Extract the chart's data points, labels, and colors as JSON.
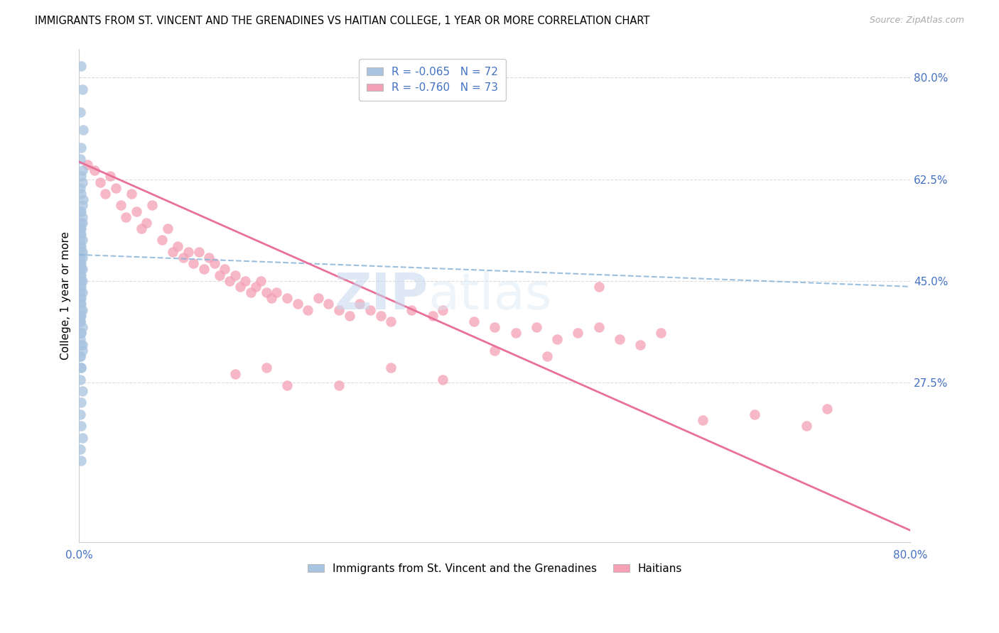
{
  "title": "IMMIGRANTS FROM ST. VINCENT AND THE GRENADINES VS HAITIAN COLLEGE, 1 YEAR OR MORE CORRELATION CHART",
  "source": "Source: ZipAtlas.com",
  "ylabel": "College, 1 year or more",
  "x_ticks": [
    0.0,
    0.1,
    0.2,
    0.3,
    0.4,
    0.5,
    0.6,
    0.7,
    0.8
  ],
  "x_tick_labels": [
    "0.0%",
    "",
    "",
    "",
    "",
    "",
    "",
    "",
    "80.0%"
  ],
  "y_tick_labels_right": [
    "80.0%",
    "62.5%",
    "45.0%",
    "27.5%"
  ],
  "y_ticks_right": [
    0.8,
    0.625,
    0.45,
    0.275
  ],
  "xlim": [
    0.0,
    0.8
  ],
  "ylim": [
    0.0,
    0.85
  ],
  "legend_label1": "Immigrants from St. Vincent and the Grenadines",
  "legend_label2": "Haitians",
  "color_blue": "#a8c4e0",
  "color_pink": "#f4a0b5",
  "color_blue_line": "#8ab4d8",
  "color_pink_line": "#e8709a",
  "color_text_blue": "#4472c4",
  "grid_color": "#dddddd",
  "background_color": "#ffffff",
  "blue_dots_x": [
    0.002,
    0.003,
    0.001,
    0.004,
    0.002,
    0.001,
    0.003,
    0.002,
    0.003,
    0.001,
    0.002,
    0.004,
    0.003,
    0.002,
    0.001,
    0.003,
    0.002,
    0.003,
    0.001,
    0.002,
    0.001,
    0.002,
    0.003,
    0.001,
    0.002,
    0.001,
    0.003,
    0.002,
    0.001,
    0.003,
    0.002,
    0.001,
    0.002,
    0.003,
    0.001,
    0.002,
    0.001,
    0.003,
    0.002,
    0.001,
    0.002,
    0.001,
    0.003,
    0.002,
    0.001,
    0.002,
    0.001,
    0.003,
    0.002,
    0.001,
    0.002,
    0.001,
    0.003,
    0.002,
    0.001,
    0.002,
    0.003,
    0.001,
    0.002,
    0.001,
    0.003,
    0.002,
    0.001,
    0.002,
    0.003,
    0.001,
    0.002,
    0.001,
    0.002,
    0.003,
    0.001,
    0.002
  ],
  "blue_dots_y": [
    0.82,
    0.78,
    0.74,
    0.71,
    0.68,
    0.66,
    0.64,
    0.63,
    0.62,
    0.61,
    0.6,
    0.59,
    0.58,
    0.57,
    0.57,
    0.56,
    0.55,
    0.55,
    0.54,
    0.54,
    0.53,
    0.53,
    0.52,
    0.52,
    0.51,
    0.51,
    0.5,
    0.5,
    0.49,
    0.49,
    0.48,
    0.48,
    0.47,
    0.47,
    0.47,
    0.46,
    0.46,
    0.45,
    0.45,
    0.44,
    0.44,
    0.43,
    0.43,
    0.42,
    0.42,
    0.41,
    0.41,
    0.4,
    0.4,
    0.39,
    0.39,
    0.38,
    0.37,
    0.36,
    0.35,
    0.34,
    0.33,
    0.32,
    0.3,
    0.28,
    0.26,
    0.24,
    0.22,
    0.2,
    0.18,
    0.16,
    0.14,
    0.38,
    0.36,
    0.34,
    0.32,
    0.3
  ],
  "pink_dots_x": [
    0.008,
    0.015,
    0.02,
    0.025,
    0.03,
    0.035,
    0.04,
    0.045,
    0.05,
    0.055,
    0.06,
    0.065,
    0.07,
    0.08,
    0.085,
    0.09,
    0.095,
    0.1,
    0.105,
    0.11,
    0.115,
    0.12,
    0.125,
    0.13,
    0.135,
    0.14,
    0.145,
    0.15,
    0.155,
    0.16,
    0.165,
    0.17,
    0.175,
    0.18,
    0.185,
    0.19,
    0.2,
    0.21,
    0.22,
    0.23,
    0.24,
    0.25,
    0.26,
    0.27,
    0.28,
    0.29,
    0.3,
    0.32,
    0.34,
    0.35,
    0.38,
    0.4,
    0.42,
    0.44,
    0.46,
    0.48,
    0.5,
    0.52,
    0.54,
    0.56,
    0.6,
    0.65,
    0.7,
    0.72,
    0.3,
    0.35,
    0.2,
    0.15,
    0.25,
    0.18,
    0.4,
    0.45,
    0.5
  ],
  "pink_dots_y": [
    0.65,
    0.64,
    0.62,
    0.6,
    0.63,
    0.61,
    0.58,
    0.56,
    0.6,
    0.57,
    0.54,
    0.55,
    0.58,
    0.52,
    0.54,
    0.5,
    0.51,
    0.49,
    0.5,
    0.48,
    0.5,
    0.47,
    0.49,
    0.48,
    0.46,
    0.47,
    0.45,
    0.46,
    0.44,
    0.45,
    0.43,
    0.44,
    0.45,
    0.43,
    0.42,
    0.43,
    0.42,
    0.41,
    0.4,
    0.42,
    0.41,
    0.4,
    0.39,
    0.41,
    0.4,
    0.39,
    0.38,
    0.4,
    0.39,
    0.4,
    0.38,
    0.37,
    0.36,
    0.37,
    0.35,
    0.36,
    0.37,
    0.35,
    0.34,
    0.36,
    0.21,
    0.22,
    0.2,
    0.23,
    0.3,
    0.28,
    0.27,
    0.29,
    0.27,
    0.3,
    0.33,
    0.32,
    0.44
  ],
  "blue_line_x": [
    0.0,
    0.8
  ],
  "blue_line_y": [
    0.495,
    0.44
  ],
  "pink_line_x": [
    0.0,
    0.8
  ],
  "pink_line_y": [
    0.655,
    0.02
  ]
}
